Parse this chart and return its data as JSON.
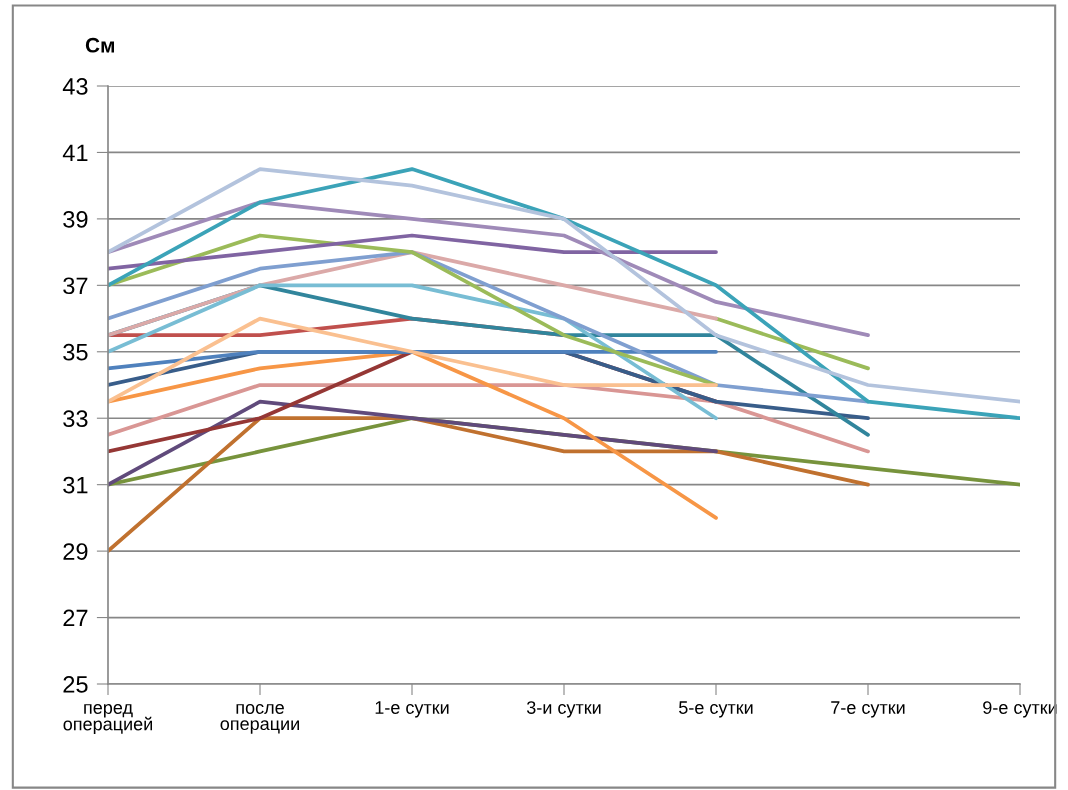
{
  "chart_data": {
    "type": "line",
    "ylabel": "См",
    "categories": [
      "перед операцией",
      "после операции",
      "1-е сутки",
      "3-и сутки",
      "5-е сутки",
      "7-е сутки",
      "9-е сутки"
    ],
    "ylim": [
      25,
      43
    ],
    "yticks": [
      25,
      27,
      29,
      31,
      33,
      35,
      37,
      39,
      41,
      43
    ],
    "grid": "y",
    "marker": "none",
    "line_style": "solid",
    "series": [
      {
        "color": "#77933c",
        "values": [
          31,
          32,
          33,
          32.5,
          32,
          31.5,
          31
        ]
      },
      {
        "color": "#c0712f",
        "values": [
          29,
          33,
          33,
          32,
          32,
          31,
          null
        ]
      },
      {
        "color": "#604a7b",
        "values": [
          31,
          33.5,
          33,
          32.5,
          32,
          null,
          null
        ]
      },
      {
        "color": "#d99694",
        "values": [
          32.5,
          34,
          34,
          34,
          33.5,
          32,
          null
        ]
      },
      {
        "color": "#f79646",
        "values": [
          33.5,
          34.5,
          35,
          33,
          30,
          null,
          null
        ]
      },
      {
        "color": "#953735",
        "values": [
          32,
          33,
          35,
          35,
          33.5,
          null,
          null
        ]
      },
      {
        "color": "#385d8a",
        "values": [
          34,
          35,
          35,
          35,
          33.5,
          33,
          null
        ]
      },
      {
        "color": "#4f81bd",
        "values": [
          34.5,
          35,
          35,
          35,
          35,
          null,
          null
        ]
      },
      {
        "color": "#c0504d",
        "values": [
          35.5,
          35.5,
          36,
          35.5,
          null,
          null,
          null
        ]
      },
      {
        "color": "#31859c",
        "values": [
          35.5,
          37,
          36,
          35.5,
          35.5,
          32.5,
          null
        ]
      },
      {
        "color": "#9bbb59",
        "values": [
          null,
          null,
          null,
          null,
          36,
          34.5,
          null
        ]
      },
      {
        "color": "#dba9a8",
        "values": [
          35.5,
          37,
          38,
          37,
          36,
          null,
          null
        ]
      },
      {
        "color": "#78bdd4",
        "values": [
          35,
          37,
          37,
          36,
          33,
          null,
          null
        ]
      },
      {
        "color": "#7f9fd0",
        "values": [
          36,
          37.5,
          38,
          36,
          34,
          33.5,
          null
        ]
      },
      {
        "color": "#9bbb59",
        "values": [
          37,
          38.5,
          38,
          35.5,
          34,
          null,
          null
        ]
      },
      {
        "color": "#8064a2",
        "values": [
          37.5,
          38,
          38.5,
          38,
          38,
          null,
          null
        ]
      },
      {
        "color": "#9f8ab8",
        "values": [
          38,
          39.5,
          39,
          38.5,
          36.5,
          35.5,
          null
        ]
      },
      {
        "color": "#3ba3b8",
        "values": [
          37,
          39.5,
          40.5,
          39,
          37,
          33.5,
          33
        ]
      },
      {
        "color": "#b3c3dd",
        "values": [
          38,
          40.5,
          40,
          39,
          35.5,
          34,
          33.5
        ]
      },
      {
        "color": "#fac090",
        "values": [
          33.5,
          36,
          35,
          34,
          34,
          null,
          null
        ]
      }
    ]
  }
}
